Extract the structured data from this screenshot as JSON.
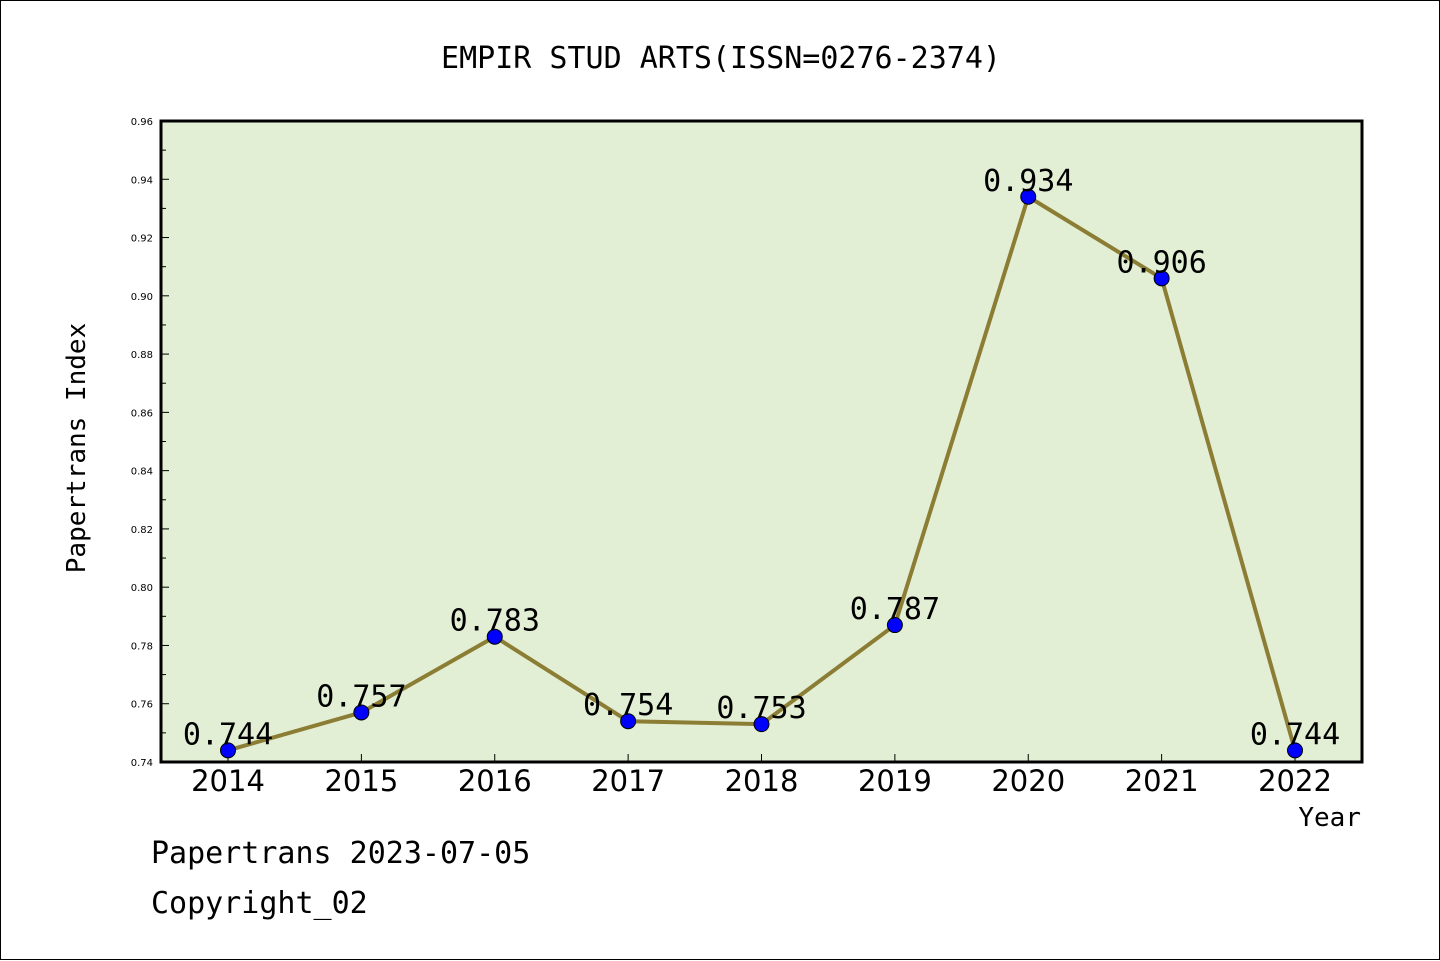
{
  "chart_data": {
    "type": "line",
    "title": "EMPIR STUD ARTS(ISSN=0276-2374)",
    "xlabel": "Year",
    "ylabel": "Papertrans Index",
    "x": [
      "2014",
      "2015",
      "2016",
      "2017",
      "2018",
      "2019",
      "2020",
      "2021",
      "2022"
    ],
    "values": [
      0.744,
      0.757,
      0.783,
      0.754,
      0.753,
      0.787,
      0.934,
      0.906,
      0.744
    ],
    "data_labels": [
      "0.744",
      "0.757",
      "0.783",
      "0.754",
      "0.753",
      "0.787",
      "0.934",
      "0.906",
      "0.744"
    ],
    "ylim": [
      0.74,
      0.96
    ],
    "yticks": [
      "0.74",
      "0.76",
      "0.78",
      "0.80",
      "0.82",
      "0.84",
      "0.86",
      "0.88",
      "0.90",
      "0.92",
      "0.94",
      "0.96"
    ],
    "grid": false,
    "legend": "none"
  },
  "colors": {
    "plot_background": "#e2efd4",
    "line": "#8c7d35",
    "marker": "#0000ff"
  },
  "footer": {
    "date_line": "Papertrans 2023-07-05",
    "copyright": "Copyright_02"
  }
}
